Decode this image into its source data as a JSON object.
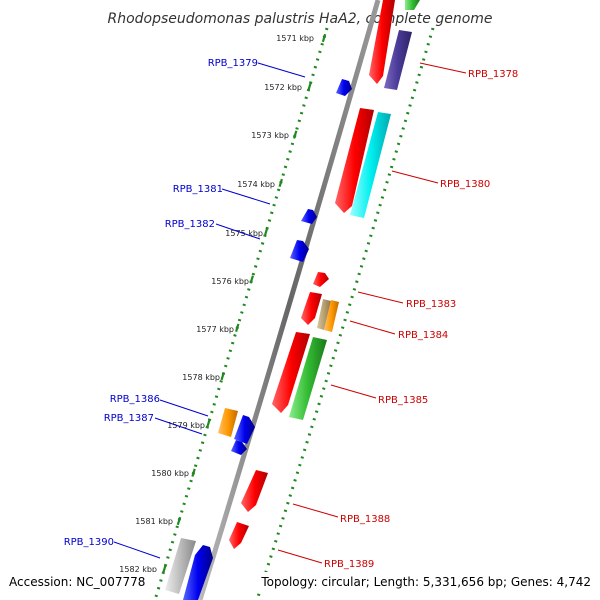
{
  "title": "Rhodopseudomonas palustris HaA2, complete genome",
  "footer": {
    "accession": "Accession: NC_007778",
    "summary": "Topology: circular; Length: 5,331,656 bp; Genes: 4,742"
  },
  "colors": {
    "forward_label": "#cc0000",
    "reverse_label": "#0000cc",
    "backbone": "#777777",
    "tick": "#228822"
  },
  "ticks": [
    "1571 kbp",
    "1572 kbp",
    "1573 kbp",
    "1574 kbp",
    "1575 kbp",
    "1576 kbp",
    "1577 kbp",
    "1578 kbp",
    "1579 kbp",
    "1580 kbp",
    "1581 kbp",
    "1582 kbp"
  ],
  "forward_labels": [
    "RPB_1378",
    "RPB_1380",
    "RPB_1383",
    "RPB_1384",
    "RPB_1385",
    "RPB_1388",
    "RPB_1389"
  ],
  "reverse_labels": [
    "RPB_1379",
    "RPB_1381",
    "RPB_1382",
    "RPB_1386",
    "RPB_1387",
    "RPB_1390"
  ]
}
